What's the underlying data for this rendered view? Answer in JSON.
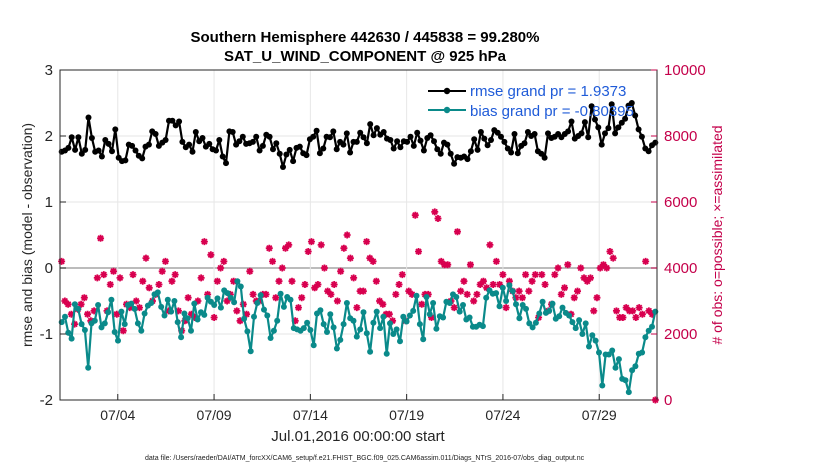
{
  "chart_data": {
    "type": "line",
    "title": "Southern Hemisphere 442630 / 445838 = 99.280%",
    "subtitle": "SAT_U_WIND_COMPONENT @ 925 hPa",
    "ylabel_left": "rmse and bias (model - observation)",
    "ylabel_right": "# of obs: o=possible; ×=assimilated",
    "xlabel": "Jul.01,2016 00:00:00 start",
    "footer": "data file: /Users/raeder/DAI/ATM_forcXX/CAM6_setup/f.e21.FHIST_BGC.f09_025.CAM6assim.011/Diags_NTrS_2016-07/obs_diag_output.nc",
    "ylim_left": [
      -2,
      3
    ],
    "ylim_right": [
      0,
      10000
    ],
    "xlim": [
      0.5,
      31.5
    ],
    "yticks_left": [
      "-2",
      "-1",
      "0",
      "1",
      "2",
      "3"
    ],
    "yticks_right": [
      "0",
      "2000",
      "4000",
      "6000",
      "8000",
      "10000"
    ],
    "xticks": [
      {
        "pos": 3.5,
        "label": "07/04"
      },
      {
        "pos": 8.5,
        "label": "07/09"
      },
      {
        "pos": 13.5,
        "label": "07/14"
      },
      {
        "pos": 18.5,
        "label": "07/19"
      },
      {
        "pos": 23.5,
        "label": "07/24"
      },
      {
        "pos": 28.5,
        "label": "07/29"
      }
    ],
    "legend": [
      {
        "name": "rmse grand pr = 1.9373",
        "color": "#000000"
      },
      {
        "name": "bias grand pr = -0.80395",
        "color": "#0a8a8a"
      }
    ],
    "series": [
      {
        "name": "rmse",
        "color": "#000000",
        "values": [
          1.76,
          1.78,
          1.82,
          1.98,
          1.79,
          1.98,
          1.73,
          1.79,
          2.28,
          1.97,
          1.76,
          1.78,
          1.69,
          1.94,
          1.88,
          1.77,
          2.1,
          1.67,
          1.62,
          1.63,
          1.87,
          1.85,
          1.78,
          1.7,
          1.66,
          1.84,
          1.87,
          2.07,
          2.03,
          1.85,
          1.9,
          1.94,
          2.23,
          2.23,
          2.16,
          2.22,
          1.91,
          1.83,
          1.87,
          1.76,
          2.06,
          1.92,
          1.97,
          1.84,
          1.88,
          1.8,
          1.78,
          1.94,
          1.69,
          1.59,
          2.07,
          2.06,
          1.87,
          1.92,
          1.99,
          1.88,
          1.89,
          1.91,
          1.99,
          1.78,
          1.85,
          2.02,
          1.99,
          1.8,
          1.89,
          1.73,
          1.53,
          1.72,
          1.79,
          1.62,
          1.82,
          1.84,
          1.74,
          1.71,
          1.95,
          1.99,
          2.08,
          1.74,
          1.81,
          1.99,
          1.98,
          2.07,
          1.8,
          1.91,
          1.87,
          2.04,
          1.75,
          1.91,
          1.91,
          2.05,
          1.98,
          1.89,
          2.18,
          2.01,
          2.12,
          2.02,
          2.06,
          1.96,
          1.94,
          1.81,
          1.92,
          1.83,
          1.92,
          1.91,
          1.99,
          1.85,
          2.05,
          1.93,
          1.78,
          1.97,
          2.01,
          1.92,
          1.8,
          1.73,
          1.9,
          1.87,
          1.73,
          1.58,
          1.68,
          1.67,
          1.69,
          1.65,
          1.77,
          1.95,
          1.79,
          2.06,
          1.96,
          1.86,
          1.94,
          2.09,
          2.05,
          1.99,
          1.91,
          1.81,
          1.75,
          2.03,
          1.74,
          1.85,
          1.89,
          2.06,
          2.0,
          2.03,
          1.77,
          1.73,
          1.67,
          2.04,
          1.97,
          1.99,
          2.03,
          1.98,
          2.03,
          2.07,
          2.22,
          1.96,
          2.0,
          2.04,
          2.21,
          1.98,
          2.45,
          2.25,
          2.13,
          1.87,
          2.04,
          2.12,
          2.48,
          2.04,
          2.13,
          2.2,
          2.26,
          2.46,
          2.5,
          2.31,
          2.1,
          1.99,
          1.81,
          1.77,
          1.86,
          1.9
        ]
      },
      {
        "name": "bias",
        "color": "#0a8a8a",
        "values": [
          -0.82,
          -0.74,
          -0.98,
          -1.07,
          -0.55,
          -0.62,
          -0.85,
          -0.94,
          -1.51,
          -0.84,
          -0.8,
          -0.56,
          -0.9,
          -0.84,
          -0.67,
          -0.48,
          -0.97,
          -1.1,
          -0.66,
          -0.85,
          -0.56,
          -0.54,
          -0.62,
          -0.84,
          -0.95,
          -0.69,
          -0.57,
          -0.53,
          -0.4,
          -0.37,
          -0.59,
          -0.72,
          -0.48,
          -0.66,
          -0.5,
          -0.82,
          -1.05,
          -0.69,
          -0.76,
          -0.95,
          -0.54,
          -0.78,
          -0.67,
          -0.71,
          -0.45,
          -0.51,
          -0.56,
          -0.46,
          -0.6,
          -0.34,
          -0.38,
          -0.45,
          -0.52,
          -0.2,
          -0.28,
          -0.77,
          -0.96,
          -1.26,
          -0.74,
          -0.53,
          -0.41,
          -0.63,
          -0.72,
          -1.06,
          -0.95,
          -0.8,
          -0.39,
          -0.59,
          -0.44,
          -0.48,
          -0.91,
          -0.93,
          -0.95,
          -0.91,
          -0.83,
          -0.94,
          -1.17,
          -0.69,
          -0.64,
          -0.85,
          -0.97,
          -0.7,
          -0.9,
          -1.22,
          -1.09,
          -0.85,
          -0.53,
          -0.76,
          -0.8,
          -1.04,
          -0.93,
          -0.67,
          -0.99,
          -1.27,
          -0.83,
          -0.66,
          -0.91,
          -0.74,
          -1.3,
          -0.84,
          -1.0,
          -0.93,
          -1.11,
          -0.74,
          -0.81,
          -0.72,
          -0.65,
          -0.42,
          -0.85,
          -1.08,
          -0.44,
          -0.7,
          -0.53,
          -0.92,
          -0.73,
          -0.75,
          -0.51,
          -0.53,
          -0.4,
          -0.44,
          -0.66,
          -0.56,
          -0.78,
          -0.75,
          -0.89,
          -0.89,
          -0.86,
          -0.88,
          -0.45,
          -0.34,
          -0.39,
          -0.38,
          -0.58,
          -0.3,
          -0.5,
          -0.26,
          -0.35,
          -0.55,
          -0.76,
          -0.56,
          -0.62,
          -0.84,
          -0.9,
          -0.83,
          -0.69,
          -0.51,
          -0.68,
          -0.65,
          -0.54,
          -0.77,
          -0.73,
          -0.6,
          -0.68,
          -0.72,
          -0.82,
          -0.91,
          -0.79,
          -1.0,
          -0.84,
          -1.19,
          -1.02,
          -1.1,
          -1.28,
          -1.78,
          -1.31,
          -1.31,
          -1.25,
          -1.51,
          -1.38,
          -1.68,
          -1.7,
          -1.88,
          -1.55,
          -1.49,
          -1.3,
          -1.28,
          -1.05,
          -0.95,
          -0.89,
          -0.66
        ]
      },
      {
        "name": "obs possible (o)",
        "color": "#d8004f",
        "values": []
      },
      {
        "name": "obs assimilated (×)",
        "color": "#d8004f",
        "values": [
          4200,
          3000,
          2900,
          2600,
          2300,
          2750,
          2900,
          3100,
          2600,
          2400,
          2700,
          3700,
          4900,
          3800,
          2700,
          3500,
          3900,
          2600,
          3700,
          2100,
          2900,
          2800,
          3800,
          3000,
          2800,
          3600,
          4300,
          3400,
          3000,
          3200,
          3500,
          3900,
          4200,
          2700,
          3600,
          3800,
          2700,
          2100,
          2400,
          3100,
          2600,
          2500,
          3000,
          3700,
          4800,
          3200,
          4400,
          2500,
          3600,
          4000,
          4200,
          3000,
          3200,
          3600,
          2700,
          2400,
          2900,
          2600,
          3900,
          3200,
          3000,
          3000,
          3200,
          3200,
          4600,
          4200,
          3100,
          3600,
          4000,
          4600,
          4700,
          3600,
          2400,
          2800,
          3100,
          3500,
          4500,
          4800,
          3400,
          3500,
          4700,
          4000,
          3300,
          3200,
          3500,
          3000,
          3900,
          4600,
          5000,
          4300,
          3700,
          2800,
          3300,
          3300,
          4800,
          4300,
          4200,
          3600,
          3000,
          2900,
          2600,
          2600,
          2400,
          3200,
          3500,
          3800,
          2400,
          3300,
          3200,
          5600,
          4500,
          2900,
          3200,
          3200,
          2500,
          5700,
          5500,
          4200,
          4100,
          4100,
          3000,
          2800,
          5100,
          3300,
          3600,
          3200,
          4100,
          3000,
          3200,
          3500,
          3600,
          3400,
          4700,
          3500,
          4200,
          3500,
          3800,
          2800,
          3600,
          3300,
          3100,
          3300,
          3100,
          3800,
          3300,
          3600,
          3800,
          2500,
          3800,
          3500,
          2700,
          2900,
          3800,
          4000,
          3200,
          3400,
          4100,
          2600,
          3100,
          3300,
          4000,
          3700,
          3600,
          3700,
          2700,
          3100,
          4000,
          4100,
          4000,
          4500,
          4300,
          2700,
          2500,
          2500,
          2800,
          2700,
          2700,
          2500,
          2800,
          2600,
          4200,
          2700,
          2600,
          0
        ]
      }
    ]
  }
}
